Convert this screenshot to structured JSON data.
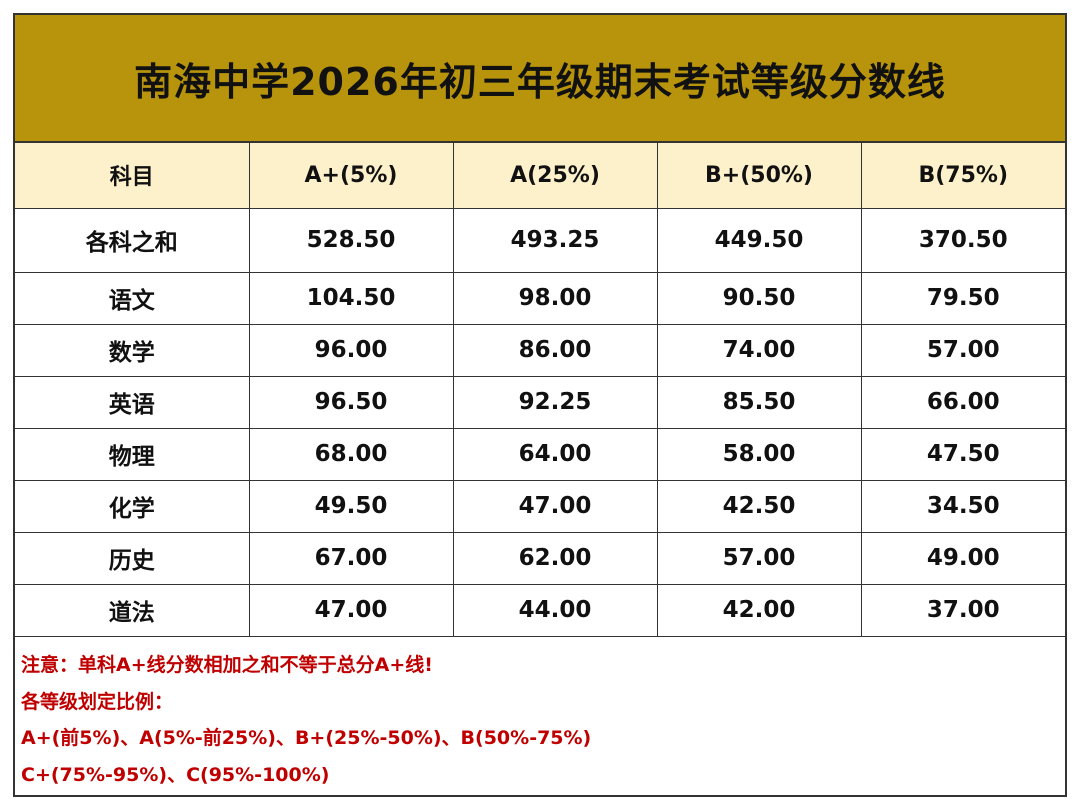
{
  "title": "南海中学2026年初三年级期末考试等级分数线",
  "table": {
    "headers": [
      "科目",
      "A+(5%)",
      "A(25%)",
      "B+(50%)",
      "B(75%)"
    ],
    "rows": [
      {
        "subject": "各科之和",
        "values": [
          "528.50",
          "493.25",
          "449.50",
          "370.50"
        ]
      },
      {
        "subject": "语文",
        "values": [
          "104.50",
          "98.00",
          "90.50",
          "79.50"
        ]
      },
      {
        "subject": "数学",
        "values": [
          "96.00",
          "86.00",
          "74.00",
          "57.00"
        ]
      },
      {
        "subject": "英语",
        "values": [
          "96.50",
          "92.25",
          "85.50",
          "66.00"
        ]
      },
      {
        "subject": "物理",
        "values": [
          "68.00",
          "64.00",
          "58.00",
          "47.50"
        ]
      },
      {
        "subject": "化学",
        "values": [
          "49.50",
          "47.00",
          "42.50",
          "34.50"
        ]
      },
      {
        "subject": "历史",
        "values": [
          "67.00",
          "62.00",
          "57.00",
          "49.00"
        ]
      },
      {
        "subject": "道法",
        "values": [
          "47.00",
          "44.00",
          "42.00",
          "37.00"
        ]
      }
    ]
  },
  "notes": [
    "注意：单科A+线分数相加之和不等于总分A+线!",
    "各等级划定比例：",
    "A+(前5%)、A(5%-前25%)、B+(25%-50%)、B(50%-75%)",
    "C+(75%-95%)、C(95%-100%)"
  ],
  "colors": {
    "title_background": "#b8940c",
    "header_background": "#fdf1cc",
    "note_text": "#c00000"
  }
}
